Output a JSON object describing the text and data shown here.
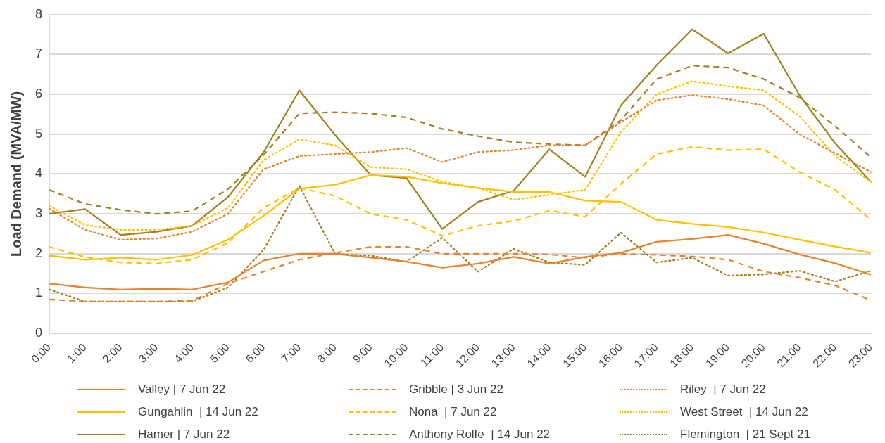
{
  "chart_data": {
    "type": "line",
    "ylabel": "Load Demand (MVA/MW)",
    "categories": [
      "0:00",
      "1:00",
      "2:00",
      "3:00",
      "4:00",
      "5:00",
      "6:00",
      "7:00",
      "8:00",
      "9:00",
      "10:00",
      "11:00",
      "12:00",
      "13:00",
      "14:00",
      "15:00",
      "16:00",
      "17:00",
      "18:00",
      "19:00",
      "20:00",
      "21:00",
      "22:00",
      "23:00"
    ],
    "ylim": [
      0,
      8
    ],
    "yticks": [
      0,
      1,
      2,
      3,
      4,
      5,
      6,
      7,
      8
    ],
    "grid": "y",
    "legend": "bottom",
    "marker": "none",
    "series": [
      {
        "name": "Valley | 7 Jun 22",
        "color": "#e9822e",
        "line_style": "solid",
        "values": [
          1.25,
          1.15,
          1.1,
          1.12,
          1.1,
          1.28,
          1.83,
          2.0,
          2.0,
          1.9,
          1.8,
          1.65,
          1.75,
          1.92,
          1.75,
          1.92,
          2.02,
          2.3,
          2.37,
          2.47,
          2.25,
          1.98,
          1.76,
          1.47
        ]
      },
      {
        "name": "Gribble | 3 Jun 22",
        "color": "#e9822e",
        "line_style": "dashed",
        "values": [
          0.85,
          0.8,
          0.8,
          0.8,
          0.82,
          1.25,
          1.55,
          1.85,
          2.02,
          2.17,
          2.17,
          2.0,
          2.0,
          2.0,
          1.98,
          1.9,
          2.0,
          1.97,
          1.93,
          1.85,
          1.55,
          1.4,
          1.2,
          0.83
        ]
      },
      {
        "name": "Riley  | 7 Jun 22",
        "color": "#e9822e",
        "line_style": "dotted",
        "values": [
          3.13,
          2.6,
          2.35,
          2.38,
          2.55,
          3.0,
          4.12,
          4.45,
          4.5,
          4.55,
          4.65,
          4.3,
          4.55,
          4.6,
          4.72,
          4.72,
          5.3,
          5.85,
          5.98,
          5.88,
          5.72,
          5.0,
          4.52,
          4.05
        ]
      },
      {
        "name": "Gungahlin  | 14 Jun 22",
        "color": "#ffc000",
        "line_style": "solid",
        "values": [
          1.95,
          1.85,
          1.9,
          1.85,
          1.97,
          2.35,
          2.95,
          3.63,
          3.73,
          3.97,
          3.93,
          3.77,
          3.65,
          3.55,
          3.55,
          3.33,
          3.3,
          2.85,
          2.75,
          2.67,
          2.53,
          2.35,
          2.18,
          2.02
        ]
      },
      {
        "name": "Nona  | 7 Jun 22",
        "color": "#ffc000",
        "line_style": "dashed",
        "values": [
          2.17,
          1.92,
          1.78,
          1.75,
          1.85,
          2.27,
          3.15,
          3.65,
          3.45,
          3.0,
          2.85,
          2.45,
          2.7,
          2.82,
          3.08,
          2.93,
          3.75,
          4.5,
          4.68,
          4.6,
          4.62,
          4.05,
          3.6,
          2.85
        ]
      },
      {
        "name": "West Street  | 14 Jun 22",
        "color": "#ffc000",
        "line_style": "dotted",
        "values": [
          3.2,
          2.72,
          2.6,
          2.6,
          2.7,
          3.15,
          4.35,
          4.87,
          4.72,
          4.17,
          4.12,
          3.8,
          3.65,
          3.35,
          3.48,
          3.6,
          5.05,
          6.0,
          6.33,
          6.2,
          6.1,
          5.45,
          4.45,
          3.8
        ]
      },
      {
        "name": "Hamer | 7 Jun 22",
        "color": "#a08020",
        "line_style": "solid",
        "values": [
          3.0,
          3.12,
          2.47,
          2.55,
          2.7,
          3.42,
          4.55,
          6.1,
          4.98,
          3.97,
          3.9,
          2.62,
          3.3,
          3.58,
          4.62,
          3.93,
          5.72,
          6.73,
          7.63,
          7.03,
          7.52,
          5.98,
          4.77,
          3.8
        ]
      },
      {
        "name": "Anthony Rolfe  | 14 Jun 22",
        "color": "#a08020",
        "line_style": "dashed",
        "values": [
          3.6,
          3.25,
          3.1,
          3.0,
          3.07,
          3.62,
          4.48,
          5.52,
          5.55,
          5.52,
          5.42,
          5.13,
          4.95,
          4.8,
          4.75,
          4.72,
          5.35,
          6.38,
          6.72,
          6.67,
          6.38,
          5.92,
          5.2,
          4.42
        ]
      },
      {
        "name": "Flemington  | 21 Sept 21",
        "color": "#a08020",
        "line_style": "dotted",
        "values": [
          1.1,
          0.8,
          0.8,
          0.8,
          0.8,
          1.15,
          2.1,
          3.7,
          2.0,
          1.95,
          1.8,
          2.4,
          1.55,
          2.12,
          1.78,
          1.72,
          2.53,
          1.78,
          1.9,
          1.45,
          1.48,
          1.57,
          1.3,
          1.57
        ]
      }
    ]
  }
}
